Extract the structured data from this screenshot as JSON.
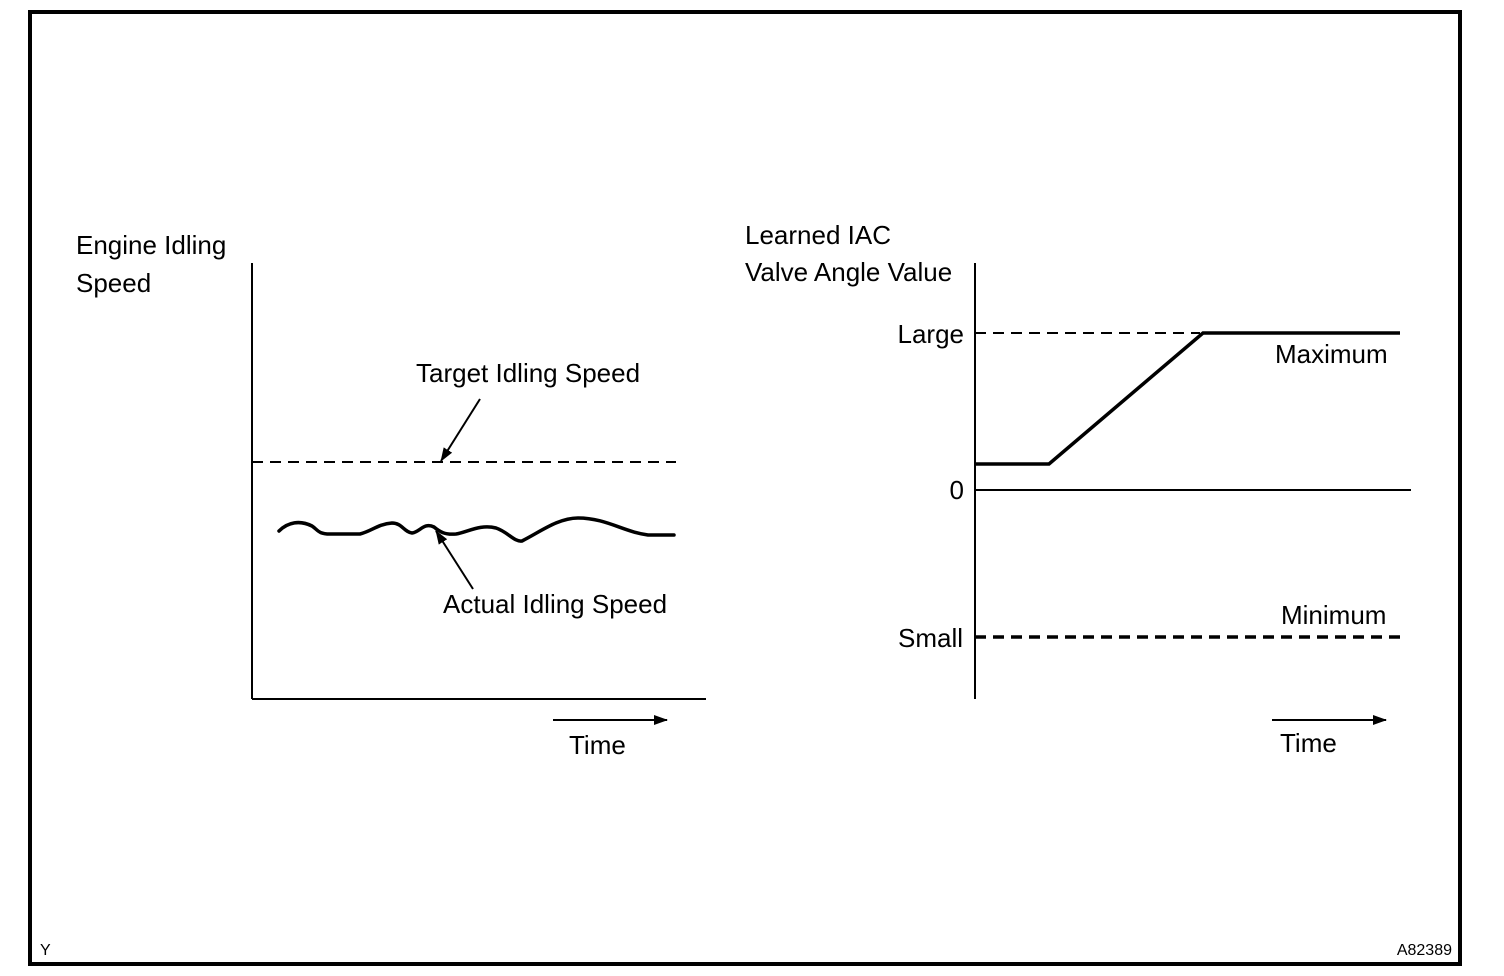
{
  "corner_left": "Y",
  "corner_right": "A82389",
  "left_chart": {
    "ylabel_line1": "Engine Idling",
    "ylabel_line2": "Speed",
    "target_label": "Target Idling Speed",
    "actual_label": "Actual Idling Speed",
    "time_label": "Time"
  },
  "right_chart": {
    "ylabel_line1": "Learned IAC",
    "ylabel_line2": "Valve Angle Value",
    "tick_large": "Large",
    "tick_zero": "0",
    "tick_small": "Small",
    "maximum_label": "Maximum",
    "minimum_label": "Minimum",
    "time_label": "Time"
  }
}
